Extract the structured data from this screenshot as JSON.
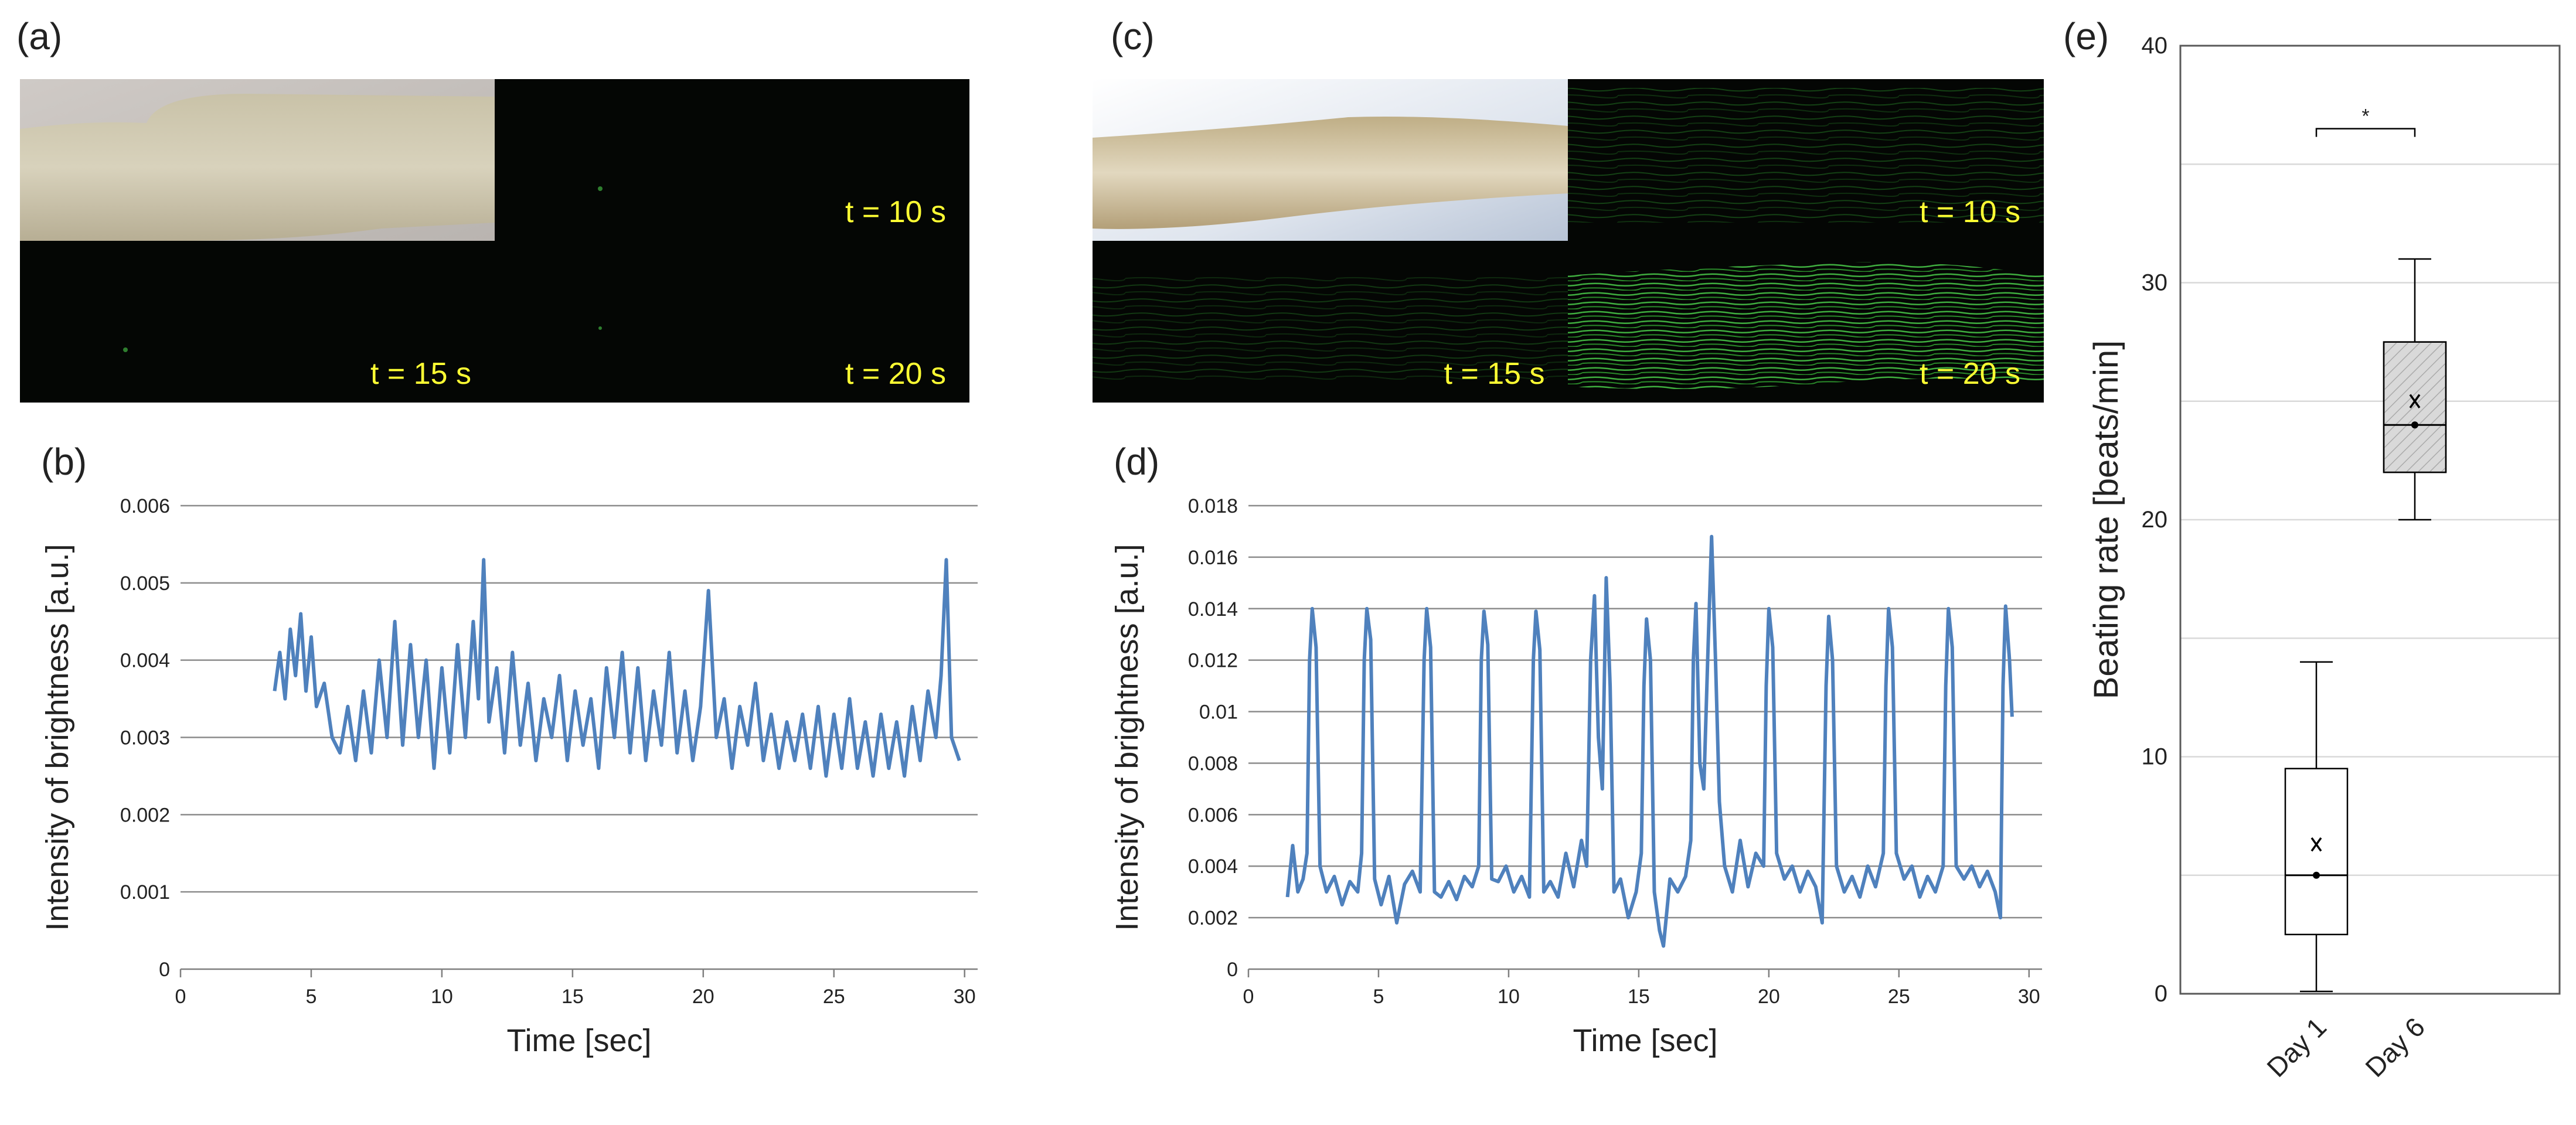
{
  "panel_labels": [
    "(a)",
    "(b)",
    "(c)",
    "(d)",
    "(e)"
  ],
  "image_labels": {
    "a": [
      "t = 10 s",
      "t = 15 s",
      "t = 20 s"
    ],
    "c": [
      "t = 10 s",
      "t = 15 s",
      "t = 20 s"
    ]
  },
  "chart_data": [
    {
      "type": "line",
      "color": "#4f81bd",
      "xlabel": "Time [sec]",
      "ylabel": "Intensity of brightness [a.u.]",
      "xlim": [
        0,
        30.5
      ],
      "xticks": [
        0,
        5,
        10,
        15,
        20,
        25,
        30
      ],
      "ylim": [
        0,
        0.006
      ],
      "yticks": [
        0,
        0.001,
        0.002,
        0.003,
        0.004,
        0.005,
        0.006
      ],
      "grid": true,
      "x": [
        3.6,
        3.8,
        4.0,
        4.2,
        4.4,
        4.6,
        4.8,
        5.0,
        5.2,
        5.5,
        5.8,
        6.1,
        6.4,
        6.7,
        7.0,
        7.3,
        7.6,
        7.9,
        8.2,
        8.5,
        8.8,
        9.1,
        9.4,
        9.7,
        10.0,
        10.3,
        10.6,
        10.9,
        11.2,
        11.4,
        11.6,
        11.8,
        12.1,
        12.4,
        12.7,
        13.0,
        13.3,
        13.6,
        13.9,
        14.2,
        14.5,
        14.8,
        15.1,
        15.4,
        15.7,
        16.0,
        16.3,
        16.6,
        16.9,
        17.2,
        17.5,
        17.8,
        18.1,
        18.4,
        18.7,
        19.0,
        19.3,
        19.6,
        19.9,
        20.2,
        20.5,
        20.8,
        21.1,
        21.4,
        21.7,
        22.0,
        22.3,
        22.6,
        22.9,
        23.2,
        23.5,
        23.8,
        24.1,
        24.4,
        24.7,
        25.0,
        25.3,
        25.6,
        25.9,
        26.2,
        26.5,
        26.8,
        27.1,
        27.4,
        27.7,
        28.0,
        28.3,
        28.6,
        28.9,
        29.1,
        29.3,
        29.5,
        29.8
      ],
      "values": [
        0.0036,
        0.0041,
        0.0035,
        0.0044,
        0.0038,
        0.0046,
        0.0036,
        0.0043,
        0.0034,
        0.0037,
        0.003,
        0.0028,
        0.0034,
        0.0027,
        0.0036,
        0.0028,
        0.004,
        0.003,
        0.0045,
        0.0029,
        0.0042,
        0.003,
        0.004,
        0.0026,
        0.0039,
        0.0028,
        0.0042,
        0.003,
        0.0045,
        0.0035,
        0.0053,
        0.0032,
        0.0039,
        0.0028,
        0.0041,
        0.0029,
        0.0037,
        0.0027,
        0.0035,
        0.003,
        0.0038,
        0.0027,
        0.0036,
        0.0029,
        0.0035,
        0.0026,
        0.0039,
        0.003,
        0.0041,
        0.0028,
        0.0039,
        0.0027,
        0.0036,
        0.0029,
        0.0041,
        0.0028,
        0.0036,
        0.0027,
        0.0034,
        0.0049,
        0.003,
        0.0035,
        0.0026,
        0.0034,
        0.0029,
        0.0037,
        0.0027,
        0.0033,
        0.0026,
        0.0032,
        0.0027,
        0.0033,
        0.0026,
        0.0034,
        0.0025,
        0.0033,
        0.0026,
        0.0035,
        0.0026,
        0.0032,
        0.0025,
        0.0033,
        0.0026,
        0.0032,
        0.0025,
        0.0034,
        0.0027,
        0.0036,
        0.003,
        0.0038,
        0.0053,
        0.003,
        0.0027
      ]
    },
    {
      "type": "line",
      "color": "#4f81bd",
      "xlabel": "Time [sec]",
      "ylabel": "Intensity of brightness [a.u.]",
      "xlim": [
        0,
        30.5
      ],
      "xticks": [
        0,
        5,
        10,
        15,
        20,
        25,
        30
      ],
      "ylim": [
        0,
        0.018
      ],
      "yticks": [
        0,
        0.002,
        0.004,
        0.006,
        0.008,
        0.01,
        0.012,
        0.014,
        0.016,
        0.018
      ],
      "grid": true,
      "x": [
        1.5,
        1.7,
        1.9,
        2.1,
        2.25,
        2.35,
        2.45,
        2.6,
        2.75,
        3.0,
        3.3,
        3.6,
        3.9,
        4.2,
        4.35,
        4.45,
        4.55,
        4.7,
        4.85,
        5.1,
        5.4,
        5.7,
        6.0,
        6.3,
        6.6,
        6.75,
        6.85,
        7.0,
        7.15,
        7.4,
        7.7,
        8.0,
        8.3,
        8.6,
        8.85,
        8.95,
        9.05,
        9.2,
        9.35,
        9.6,
        9.9,
        10.2,
        10.5,
        10.8,
        10.95,
        11.05,
        11.2,
        11.35,
        11.6,
        11.9,
        12.2,
        12.5,
        12.8,
        13.0,
        13.15,
        13.3,
        13.45,
        13.6,
        13.75,
        13.9,
        14.05,
        14.3,
        14.6,
        14.9,
        15.1,
        15.2,
        15.3,
        15.45,
        15.6,
        15.8,
        15.95,
        16.2,
        16.5,
        16.8,
        17.0,
        17.1,
        17.2,
        17.35,
        17.5,
        17.65,
        17.8,
        17.95,
        18.1,
        18.3,
        18.6,
        18.9,
        19.2,
        19.5,
        19.8,
        19.9,
        20.0,
        20.15,
        20.3,
        20.6,
        20.9,
        21.2,
        21.5,
        21.8,
        22.05,
        22.2,
        22.3,
        22.45,
        22.6,
        22.9,
        23.2,
        23.5,
        23.8,
        24.1,
        24.4,
        24.5,
        24.6,
        24.75,
        24.9,
        25.2,
        25.5,
        25.8,
        26.1,
        26.4,
        26.7,
        26.8,
        26.9,
        27.05,
        27.2,
        27.5,
        27.8,
        28.1,
        28.4,
        28.7,
        28.9,
        29.0,
        29.1,
        29.25,
        29.35
      ],
      "values": [
        0.0028,
        0.0048,
        0.003,
        0.0035,
        0.0045,
        0.012,
        0.014,
        0.0125,
        0.004,
        0.003,
        0.0036,
        0.0025,
        0.0034,
        0.003,
        0.0045,
        0.012,
        0.014,
        0.0128,
        0.0035,
        0.0025,
        0.0036,
        0.0018,
        0.0033,
        0.0038,
        0.003,
        0.012,
        0.014,
        0.0125,
        0.003,
        0.0028,
        0.0034,
        0.0027,
        0.0036,
        0.0032,
        0.004,
        0.012,
        0.0139,
        0.0126,
        0.0035,
        0.0034,
        0.004,
        0.003,
        0.0036,
        0.0028,
        0.012,
        0.0139,
        0.0124,
        0.003,
        0.0034,
        0.0028,
        0.0045,
        0.0032,
        0.005,
        0.004,
        0.012,
        0.0145,
        0.009,
        0.007,
        0.0152,
        0.011,
        0.003,
        0.0035,
        0.002,
        0.003,
        0.0045,
        0.011,
        0.0136,
        0.012,
        0.003,
        0.0015,
        0.0009,
        0.0035,
        0.003,
        0.0036,
        0.005,
        0.012,
        0.0142,
        0.008,
        0.007,
        0.012,
        0.0168,
        0.012,
        0.0065,
        0.004,
        0.003,
        0.005,
        0.0032,
        0.0045,
        0.004,
        0.011,
        0.014,
        0.0125,
        0.0045,
        0.0035,
        0.004,
        0.003,
        0.0038,
        0.0032,
        0.0018,
        0.011,
        0.0137,
        0.012,
        0.004,
        0.003,
        0.0036,
        0.0028,
        0.004,
        0.0032,
        0.0045,
        0.011,
        0.014,
        0.0125,
        0.0045,
        0.0035,
        0.004,
        0.0028,
        0.0036,
        0.003,
        0.004,
        0.011,
        0.014,
        0.0125,
        0.004,
        0.0035,
        0.004,
        0.0032,
        0.0038,
        0.003,
        0.002,
        0.011,
        0.0141,
        0.012,
        0.0098
      ]
    },
    {
      "type": "box",
      "ylabel": "Beating rate [beats/min]",
      "categories": [
        "Day 1",
        "Day 6"
      ],
      "ylim": [
        0,
        40
      ],
      "yticks": [
        0,
        10,
        20,
        30,
        40
      ],
      "minor_yticks": [
        5,
        15,
        25,
        35
      ],
      "grid": true,
      "colors": [
        "#ffffff",
        "#d9d9d9"
      ],
      "hatch": [
        false,
        true
      ],
      "min": [
        0.1,
        20
      ],
      "q1": [
        2.5,
        22
      ],
      "median": [
        5,
        24
      ],
      "q3": [
        9.5,
        27.5
      ],
      "max": [
        14,
        31
      ],
      "mean": [
        6.3,
        25
      ],
      "annotations": [
        {
          "text": "*",
          "between": [
            0,
            1
          ],
          "y": 36.5
        }
      ]
    }
  ]
}
